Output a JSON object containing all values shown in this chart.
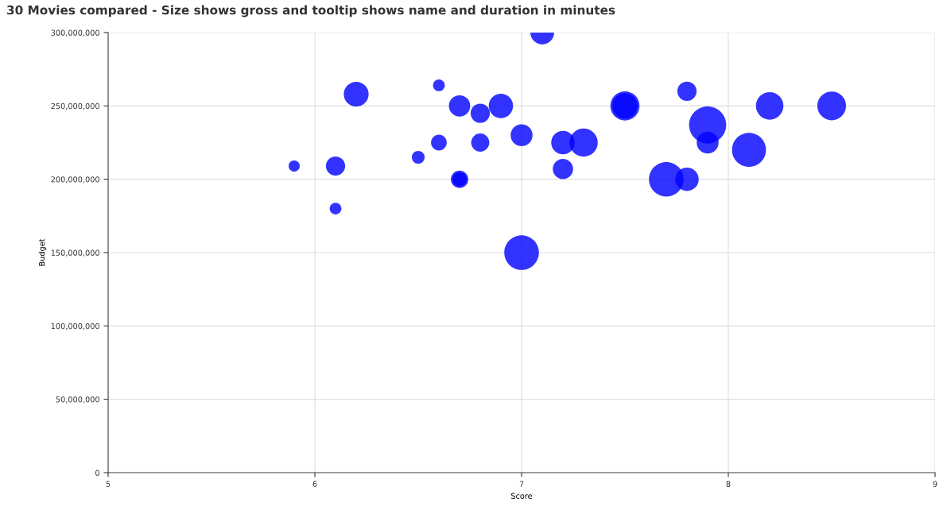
{
  "chart_data": {
    "type": "bubble",
    "title": "30 Movies compared - Size shows gross and tooltip shows name and duration in minutes",
    "xlabel": "Score",
    "ylabel": "Budget",
    "x": [
      5.9,
      6.1,
      6.1,
      6.2,
      6.5,
      6.6,
      6.6,
      6.7,
      6.7,
      6.7,
      6.8,
      6.8,
      6.9,
      7.0,
      7.0,
      7.1,
      7.2,
      7.2,
      7.3,
      7.5,
      7.5,
      7.7,
      7.8,
      7.8,
      7.9,
      7.9,
      8.1,
      8.2,
      8.5
    ],
    "values": [
      209000000,
      180000000,
      209000000,
      258000000,
      215000000,
      264000000,
      225000000,
      250000000,
      200000000,
      200000000,
      245000000,
      225000000,
      250000000,
      230000000,
      150000000,
      300000000,
      225000000,
      207000000,
      225000000,
      250000000,
      250000000,
      200000000,
      200000000,
      260000000,
      237000000,
      225000000,
      220000000,
      250000000,
      250000000
    ],
    "sizes": [
      0.09,
      0.1,
      0.27,
      0.45,
      0.12,
      0.1,
      0.18,
      0.33,
      0.15,
      0.22,
      0.27,
      0.24,
      0.43,
      0.35,
      0.87,
      0.41,
      0.4,
      0.3,
      0.58,
      0.47,
      0.62,
      0.87,
      0.4,
      0.27,
      1,
      0.35,
      0.84,
      0.55,
      0.6
    ],
    "color": "#0000ff",
    "xlim": [
      5,
      9
    ],
    "xticks": [
      5,
      6,
      7,
      8,
      9
    ],
    "ylim": [
      0,
      300000000
    ],
    "yticks": [
      {
        "value": 0,
        "label": "0"
      },
      {
        "value": 50000000,
        "label": "50,000,000"
      },
      {
        "value": 100000000,
        "label": "100,000,000"
      },
      {
        "value": 150000000,
        "label": "150,000,000"
      },
      {
        "value": 200000000,
        "label": "200,000,000"
      },
      {
        "value": 250000000,
        "label": "250,000,000"
      },
      {
        "value": 300000000,
        "label": "300,000,000"
      }
    ],
    "grid": true
  }
}
